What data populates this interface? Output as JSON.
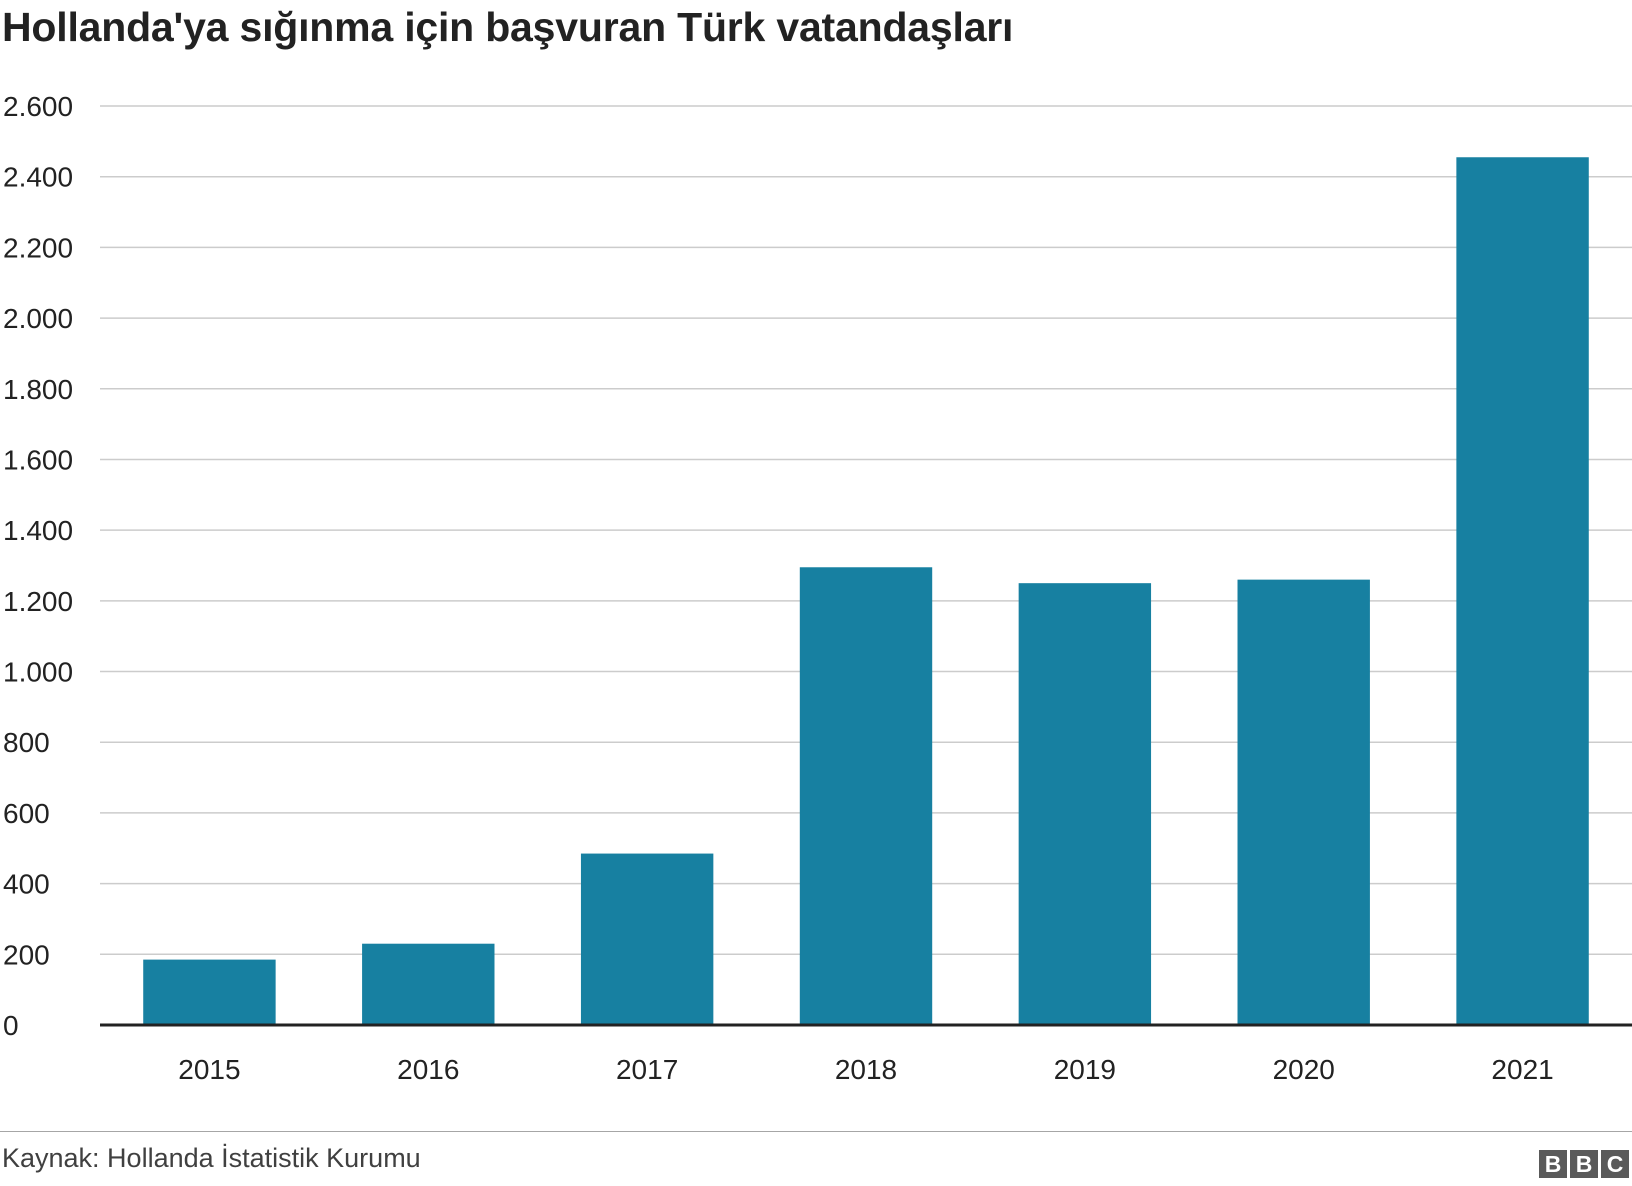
{
  "title": "Hollanda'ya sığınma için başvuran Türk vatandaşları",
  "source": "Kaynak: Hollanda İstatistik Kurumu",
  "logo": [
    "B",
    "B",
    "C"
  ],
  "colors": {
    "bar": "#1780a1",
    "grid": "#cccccc",
    "axis": "#222222",
    "text": "#222222"
  },
  "chart_data": {
    "type": "bar",
    "title": "Hollanda'ya sığınma için başvuran Türk vatandaşları",
    "xlabel": "",
    "ylabel": "",
    "categories": [
      "2015",
      "2016",
      "2017",
      "2018",
      "2019",
      "2020",
      "2021"
    ],
    "values": [
      185,
      230,
      485,
      1295,
      1250,
      1260,
      2455
    ],
    "ylim": [
      0,
      2600
    ],
    "y_ticks": [
      0,
      200,
      400,
      600,
      800,
      1000,
      1200,
      1400,
      1600,
      1800,
      2000,
      2200,
      2400,
      2600
    ],
    "y_tick_labels": [
      "0",
      "200",
      "400",
      "600",
      "800",
      "1.000",
      "1.200",
      "1.400",
      "1.600",
      "1.800",
      "2.000",
      "2.200",
      "2.400",
      "2.600"
    ],
    "grid": true,
    "legend": "none"
  }
}
